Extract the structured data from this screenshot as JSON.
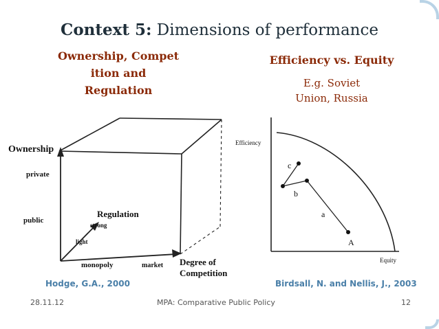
{
  "colors": {
    "title": "#1f2f3a",
    "accent": "#8b2a08",
    "citation": "#4a7fa8",
    "footer": "#555555",
    "frame": "#b9d3e6"
  },
  "slide": {
    "title_bold": "Context 5:",
    "title_rest": " Dimensions of performance",
    "left_heading_line1": "Ownership, Compet",
    "left_heading_line2": "ition and",
    "left_heading_line3": "Regulation",
    "right_heading": "Efficiency vs. Equity",
    "right_example_line1": "E.g. Soviet",
    "right_example_line2": "Union, Russia"
  },
  "cube_figure": {
    "ownership_label": "Ownership",
    "private_label": "private",
    "public_label": "public",
    "regulation_label": "Regulation",
    "strong_label": "strong",
    "light_label": "light",
    "monopoly_label": "monopoly",
    "market_label": "market",
    "competition_line1": "Degree of",
    "competition_line2": "Competition"
  },
  "frontier_figure": {
    "efficiency_label": "Efficiency",
    "equity_label": "Equity",
    "point_a": "A",
    "point_b": "b",
    "point_c": "c",
    "segment_a": "a"
  },
  "citations": {
    "left": "Hodge, G.A., 2000",
    "right": "Birdsall, N. and Nellis, J., 2003"
  },
  "footer": {
    "date": "28.11.12",
    "course": "MPA: Comparative Public Policy",
    "page": "12"
  }
}
